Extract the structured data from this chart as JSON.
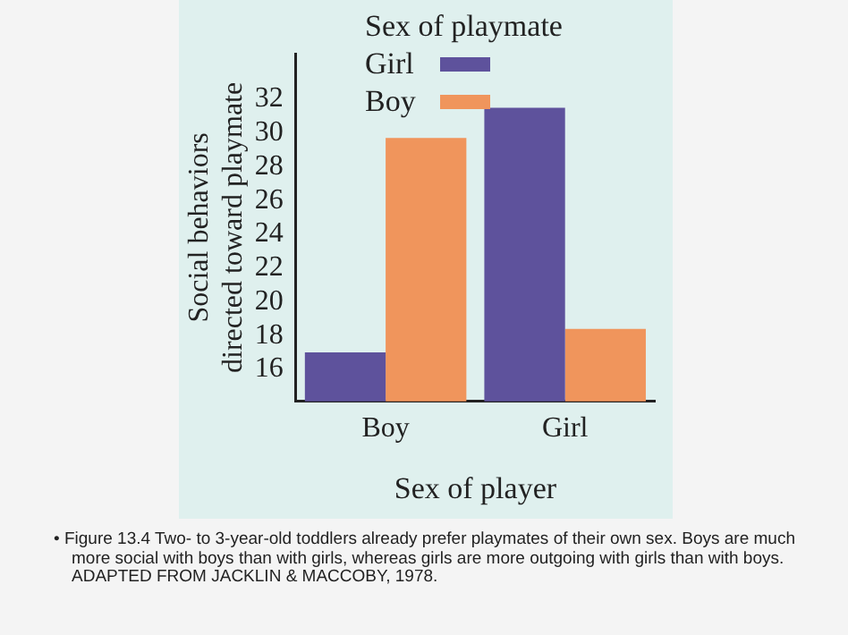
{
  "chart_data": {
    "type": "bar",
    "xlabel": "Sex of player",
    "ylabel": "Social behaviors directed toward playmate",
    "legend_title": "Sex of playmate",
    "categories": [
      "Boy",
      "Girl"
    ],
    "series": [
      {
        "name": "Girl",
        "color": "#5e529c",
        "values": [
          17.0,
          31.5
        ]
      },
      {
        "name": "Boy",
        "color": "#f0955c",
        "values": [
          29.7,
          18.4
        ]
      }
    ],
    "ylim": [
      14.1,
      34.7
    ],
    "yticks": [
      16,
      18,
      20,
      22,
      24,
      26,
      28,
      30,
      32
    ],
    "grid": false,
    "legend": "top",
    "annotations": [
      "• Figure 13.4  Two- to 3-year-old toddlers already prefer playmates of their own sex.  Boys are much more social with boys than with girls, whereas girls are more outgoing with girls than with boys. ADAPTED FROM JACKLIN & MACCOBY, 1978."
    ]
  }
}
